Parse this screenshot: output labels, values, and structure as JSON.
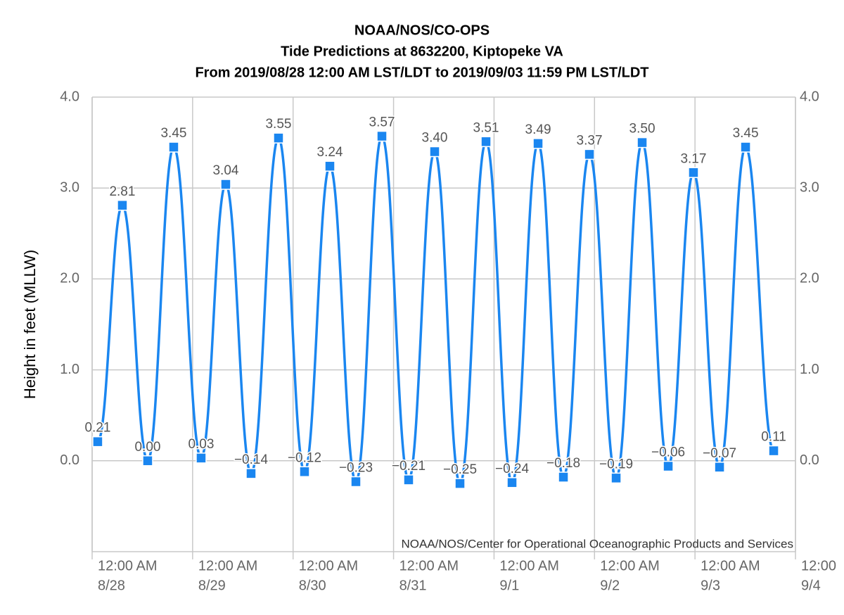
{
  "chart_data": {
    "type": "line",
    "title": [
      "NOAA/NOS/CO-OPS",
      "Tide Predictions at 8632200, Kiptopeke VA",
      "From 2019/08/28 12:00 AM LST/LDT to 2019/09/03 11:59 PM LST/LDT"
    ],
    "y_label": "Height in feet (MLLW)",
    "credits": "NOAA/NOS/Center for Operational Oceanographic Products and Services",
    "x": [
      "8/28 01:20",
      "8/28 07:13",
      "8/28 13:16",
      "8/28 19:29",
      "8/29 02:02",
      "8/29 07:55",
      "8/29 13:58",
      "8/29 20:31",
      "8/30 02:44",
      "8/30 08:47",
      "8/30 15:00",
      "8/30 21:13",
      "8/31 03:36",
      "8/31 09:49",
      "8/31 15:52",
      "8/31 22:05",
      "9/1 04:18",
      "9/1 10:31",
      "9/1 16:34",
      "9/1 22:47",
      "9/2 05:10",
      "9/2 11:23",
      "9/2 17:36",
      "9/2 23:38",
      "9/3 05:52",
      "9/3 12:05",
      "9/3 18:48"
    ],
    "series": [
      {
        "color": "#1a86f0",
        "values": [
          0.21,
          2.81,
          0.0,
          3.45,
          0.03,
          3.04,
          -0.14,
          3.55,
          -0.12,
          3.24,
          -0.23,
          3.57,
          -0.21,
          3.4,
          -0.25,
          3.51,
          -0.24,
          3.49,
          -0.18,
          3.37,
          -0.19,
          3.5,
          -0.06,
          3.17,
          -0.07,
          3.45,
          0.11
        ],
        "value_labels": [
          "0.21",
          "2.81",
          "0.00",
          "3.45",
          "0.03",
          "3.04",
          "−0.14",
          "3.55",
          "−0.12",
          "3.24",
          "−0.23",
          "3.57",
          "−0.21",
          "3.40",
          "−0.25",
          "3.51",
          "−0.24",
          "3.49",
          "−0.18",
          "3.37",
          "−0.19",
          "3.50",
          "−0.06",
          "3.17",
          "−0.07",
          "3.45",
          "0.11"
        ]
      }
    ],
    "xlim": [
      "8/28 00:00",
      "9/4 00:00"
    ],
    "xticks": [
      {
        "value": "8/28 00:00",
        "label": [
          "12:00 AM",
          "8/28"
        ]
      },
      {
        "value": "8/29 00:00",
        "label": [
          "12:00 AM",
          "8/29"
        ]
      },
      {
        "value": "8/30 00:00",
        "label": [
          "12:00 AM",
          "8/30"
        ]
      },
      {
        "value": "8/31 00:00",
        "label": [
          "12:00 AM",
          "8/31"
        ]
      },
      {
        "value": "9/1 00:00",
        "label": [
          "12:00 AM",
          "9/1"
        ]
      },
      {
        "value": "9/2 00:00",
        "label": [
          "12:00 AM",
          "9/2"
        ]
      },
      {
        "value": "9/3 00:00",
        "label": [
          "12:00 AM",
          "9/3"
        ]
      },
      {
        "value": "9/4 00:00",
        "label": [
          "12:00",
          "9/4"
        ]
      }
    ],
    "ylim": [
      -1,
      4
    ],
    "yticks": [
      {
        "value": 0,
        "label": "0.0"
      },
      {
        "value": 1,
        "label": "1.0"
      },
      {
        "value": 2,
        "label": "2.0"
      },
      {
        "value": 3,
        "label": "3.0"
      },
      {
        "value": 4,
        "label": "4.0"
      }
    ],
    "y2lim": [
      -1,
      4
    ],
    "y2ticks": [
      {
        "value": 0,
        "label": "0.0"
      },
      {
        "value": 1,
        "label": "1.0"
      },
      {
        "value": 2,
        "label": "2.0"
      },
      {
        "value": 3,
        "label": "3.0"
      },
      {
        "value": 4,
        "label": "4.0"
      }
    ],
    "grid": true
  }
}
